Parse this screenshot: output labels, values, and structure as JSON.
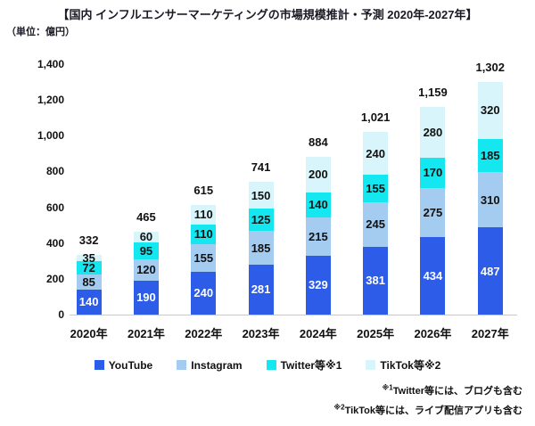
{
  "title": "【国内 インフルエンサーマーケティングの市場規模推計・予測 2020年-2027年】",
  "unit_label": "（単位：億円）",
  "chart_data": {
    "type": "bar",
    "stacked": true,
    "title": "国内 インフルエンサーマーケティングの市場規模推計・予測 2020年-2027年",
    "unit": "億円",
    "categories": [
      "2020年",
      "2021年",
      "2022年",
      "2023年",
      "2024年",
      "2025年",
      "2026年",
      "2027年"
    ],
    "series": [
      {
        "name": "YouTube",
        "slug": "youtube",
        "color": "#2d5ce8",
        "label_color": "#ffffff",
        "values": [
          140,
          190,
          240,
          281,
          329,
          381,
          434,
          487
        ]
      },
      {
        "name": "Instagram",
        "slug": "instagram",
        "color": "#a4cbf0",
        "label_color": "#111111",
        "values": [
          85,
          120,
          155,
          185,
          215,
          245,
          275,
          310
        ]
      },
      {
        "name": "Twitter等※1",
        "slug": "twitter",
        "color": "#14e7f0",
        "label_color": "#111111",
        "values": [
          72,
          95,
          110,
          125,
          140,
          155,
          170,
          185
        ]
      },
      {
        "name": "TikTok等※2",
        "slug": "tiktok",
        "color": "#d8f5fb",
        "label_color": "#111111",
        "values": [
          35,
          60,
          110,
          150,
          200,
          240,
          280,
          320
        ]
      }
    ],
    "totals": [
      "332",
      "465",
      "615",
      "741",
      "884",
      "1,021",
      "1,159",
      "1,302"
    ],
    "y_ticks": [
      "0",
      "200",
      "400",
      "600",
      "800",
      "1,000",
      "1,200",
      "1,400"
    ],
    "ylim": [
      0,
      1400
    ],
    "grid": false,
    "legend_position": "bottom"
  },
  "footnotes": [
    {
      "marker": "※1",
      "text": "Twitter等には、ブログも含む"
    },
    {
      "marker": "※2",
      "text": "TikTok等には、ライブ配信アプリも含む"
    }
  ]
}
